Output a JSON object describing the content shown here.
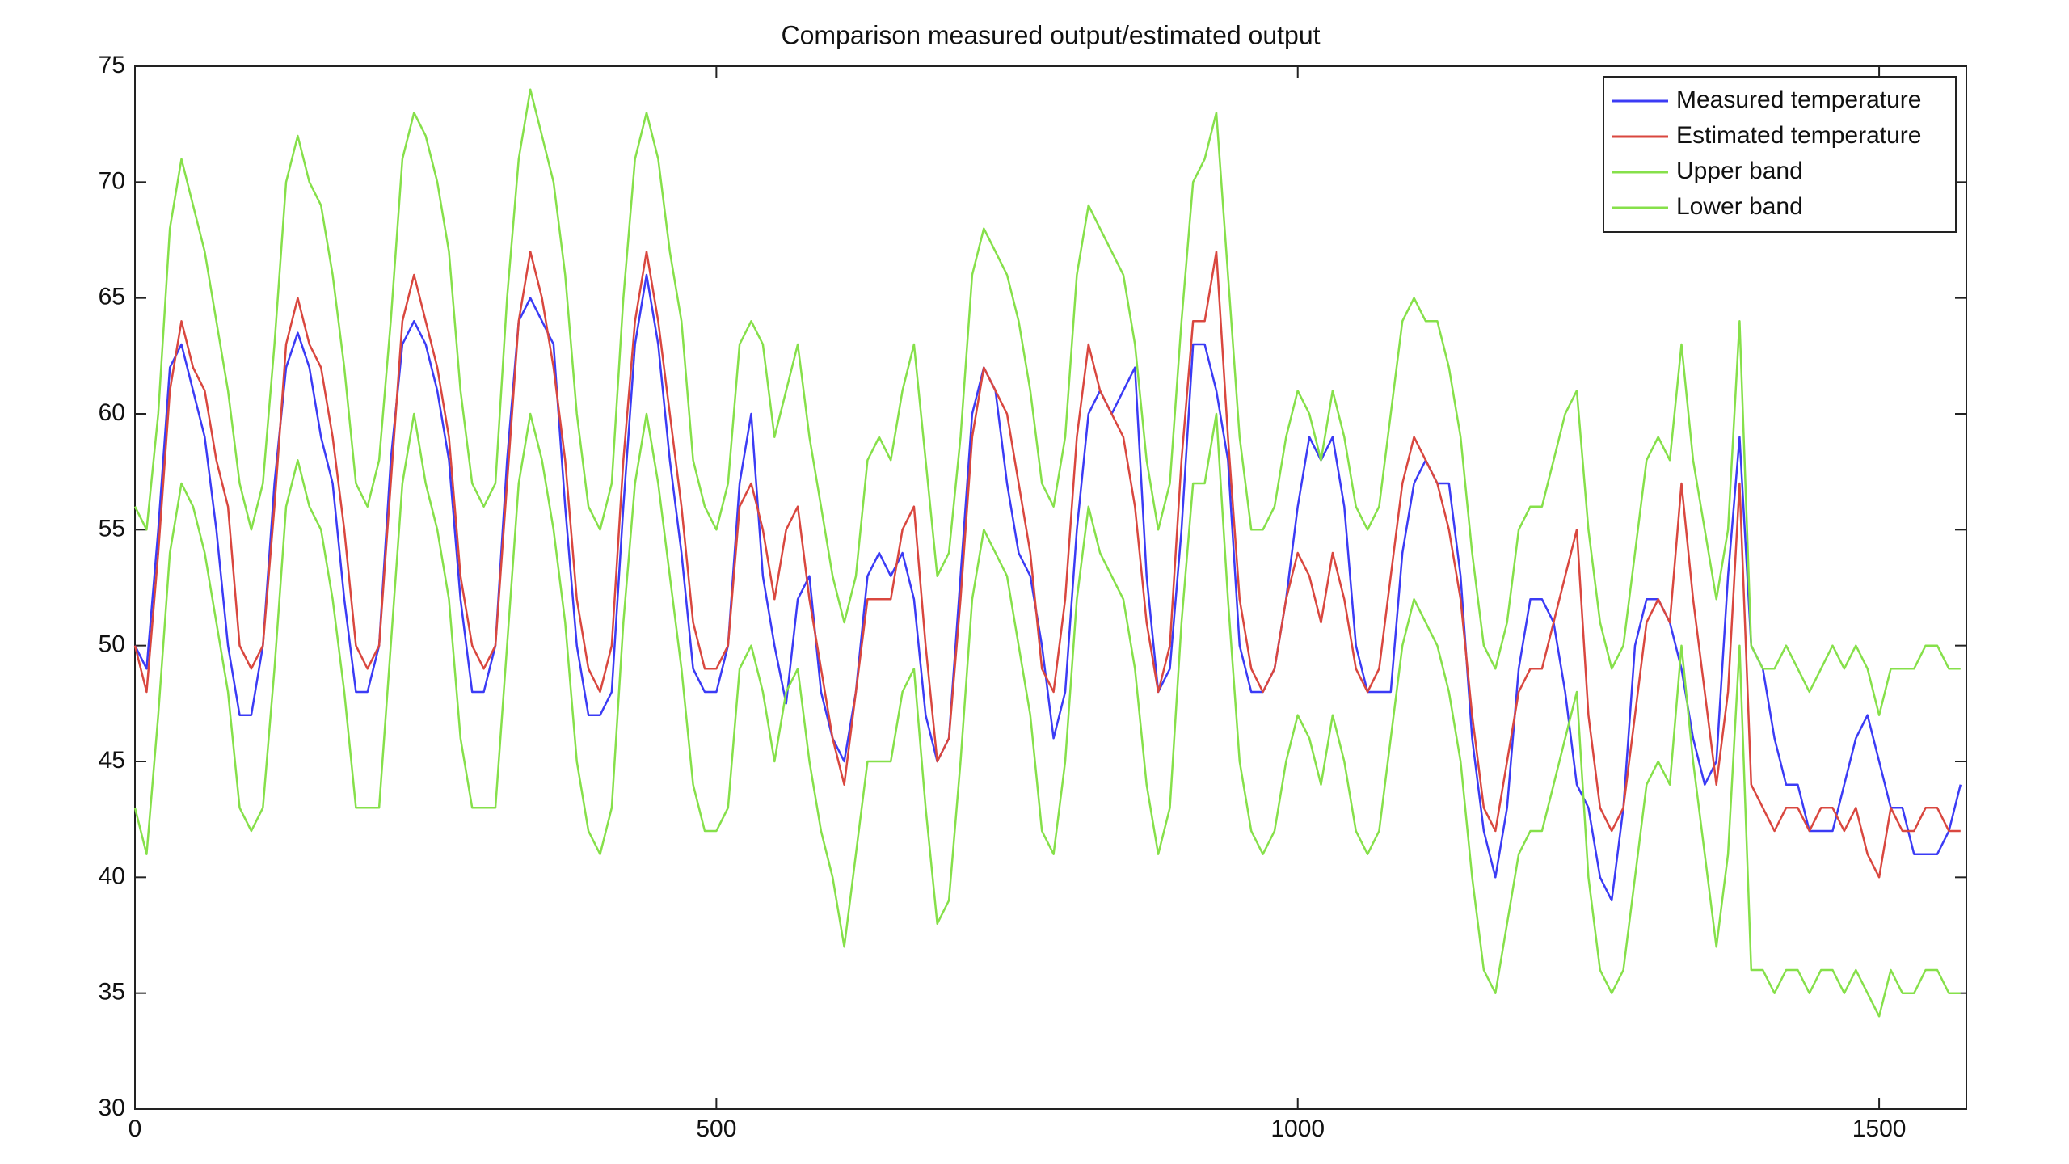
{
  "chart_data": {
    "type": "line",
    "title": "Comparison measured output/estimated output",
    "x": [
      0,
      10,
      20,
      30,
      40,
      50,
      60,
      70,
      80,
      90,
      100,
      110,
      120,
      130,
      140,
      150,
      160,
      170,
      180,
      190,
      200,
      210,
      220,
      230,
      240,
      250,
      260,
      270,
      280,
      290,
      300,
      310,
      320,
      330,
      340,
      350,
      360,
      370,
      380,
      390,
      400,
      410,
      420,
      430,
      440,
      450,
      460,
      470,
      480,
      490,
      500,
      510,
      520,
      530,
      540,
      550,
      560,
      570,
      580,
      590,
      600,
      610,
      620,
      630,
      640,
      650,
      660,
      670,
      680,
      690,
      700,
      710,
      720,
      730,
      740,
      750,
      760,
      770,
      780,
      790,
      800,
      810,
      820,
      830,
      840,
      850,
      860,
      870,
      880,
      890,
      900,
      910,
      920,
      930,
      940,
      950,
      960,
      970,
      980,
      990,
      1000,
      1010,
      1020,
      1030,
      1040,
      1050,
      1060,
      1070,
      1080,
      1090,
      1100,
      1110,
      1120,
      1130,
      1140,
      1150,
      1160,
      1170,
      1180,
      1190,
      1200,
      1210,
      1220,
      1230,
      1240,
      1250,
      1260,
      1270,
      1280,
      1290,
      1300,
      1310,
      1320,
      1330,
      1340,
      1350,
      1360,
      1370,
      1380,
      1390,
      1400,
      1410,
      1420,
      1430,
      1440,
      1450,
      1460,
      1470,
      1480,
      1490,
      1500,
      1510,
      1520,
      1530,
      1540,
      1550,
      1560,
      1570
    ],
    "series": [
      {
        "name": "Measured temperature",
        "color": "#3b3bf5",
        "values": [
          50,
          49,
          55,
          62,
          63,
          61,
          59,
          55,
          50,
          47,
          47,
          50,
          57,
          62,
          63.5,
          62,
          59,
          57,
          52,
          48,
          48,
          50,
          58,
          63,
          64,
          63,
          61,
          58,
          52,
          48,
          48,
          50,
          58,
          64,
          65,
          64,
          63,
          56,
          50,
          47,
          47,
          48,
          56,
          63,
          66,
          63,
          58,
          54,
          49,
          48,
          48,
          50,
          57,
          60,
          53,
          50,
          47.5,
          52,
          53,
          48,
          46,
          45,
          48,
          53,
          54,
          53,
          54,
          52,
          47,
          45,
          46,
          53,
          60,
          62,
          61,
          57,
          54,
          53,
          50,
          46,
          48,
          55,
          60,
          61,
          60,
          61,
          62,
          53,
          48,
          49,
          55,
          63,
          63,
          61,
          58,
          50,
          48,
          48,
          49,
          52,
          56,
          59,
          58,
          59,
          56,
          50,
          48,
          48,
          48,
          54,
          57,
          58,
          57,
          57,
          53,
          46,
          42,
          40,
          43,
          49,
          52,
          52,
          51,
          48,
          44,
          43,
          40,
          39,
          43,
          50,
          52,
          52,
          51,
          49,
          46,
          44,
          45,
          53,
          59,
          50,
          49,
          46,
          44,
          44,
          42,
          42,
          42,
          44,
          46,
          47,
          45,
          43,
          43,
          41,
          41,
          41,
          42,
          44
        ]
      },
      {
        "name": "Estimated temperature",
        "color": "#d9473f",
        "values": [
          50,
          48,
          54,
          61,
          64,
          62,
          61,
          58,
          56,
          50,
          49,
          50,
          56,
          63,
          65,
          63,
          62,
          59,
          55,
          50,
          49,
          50,
          57,
          64,
          66,
          64,
          62,
          59,
          53,
          50,
          49,
          50,
          57,
          64,
          67,
          65,
          62,
          58,
          52,
          49,
          48,
          50,
          58,
          64,
          67,
          64,
          60,
          56,
          51,
          49,
          49,
          50,
          56,
          57,
          55,
          52,
          55,
          56,
          52,
          49,
          46,
          44,
          48,
          52,
          52,
          52,
          55,
          56,
          50,
          45,
          46,
          52,
          59,
          62,
          61,
          60,
          57,
          54,
          49,
          48,
          52,
          59,
          63,
          61,
          60,
          59,
          56,
          51,
          48,
          50,
          58,
          64,
          64,
          67,
          59,
          52,
          49,
          48,
          49,
          52,
          54,
          53,
          51,
          54,
          52,
          49,
          48,
          49,
          53,
          57,
          59,
          58,
          57,
          55,
          52,
          47,
          43,
          42,
          45,
          48,
          49,
          49,
          51,
          53,
          55,
          47,
          43,
          42,
          43,
          47,
          51,
          52,
          51,
          57,
          52,
          48,
          44,
          48,
          57,
          44,
          43,
          42,
          43,
          43,
          42,
          43,
          43,
          42,
          43,
          41,
          40,
          43,
          42,
          42,
          43,
          43,
          42,
          42
        ]
      },
      {
        "name": "Upper band",
        "color": "#86e04a",
        "values": [
          56,
          55,
          60,
          68,
          71,
          69,
          67,
          64,
          61,
          57,
          55,
          57,
          63,
          70,
          72,
          70,
          69,
          66,
          62,
          57,
          56,
          58,
          64,
          71,
          73,
          72,
          70,
          67,
          61,
          57,
          56,
          57,
          65,
          71,
          74,
          72,
          70,
          66,
          60,
          56,
          55,
          57,
          65,
          71,
          73,
          71,
          67,
          64,
          58,
          56,
          55,
          57,
          63,
          64,
          63,
          59,
          61,
          63,
          59,
          56,
          53,
          51,
          53,
          58,
          59,
          58,
          61,
          63,
          58,
          53,
          54,
          59,
          66,
          68,
          67,
          66,
          64,
          61,
          57,
          56,
          59,
          66,
          69,
          68,
          67,
          66,
          63,
          58,
          55,
          57,
          64,
          70,
          71,
          73,
          66,
          59,
          55,
          55,
          56,
          59,
          61,
          60,
          58,
          61,
          59,
          56,
          55,
          56,
          60,
          64,
          65,
          64,
          64,
          62,
          59,
          54,
          50,
          49,
          51,
          55,
          56,
          56,
          58,
          60,
          61,
          55,
          51,
          49,
          50,
          54,
          58,
          59,
          58,
          63,
          58,
          55,
          52,
          55,
          64,
          50,
          49,
          49,
          50,
          49,
          48,
          49,
          50,
          49,
          50,
          49,
          47,
          49,
          49,
          49,
          50,
          50,
          49,
          49
        ]
      },
      {
        "name": "Lower band",
        "color": "#86e04a",
        "values": [
          43,
          41,
          47,
          54,
          57,
          56,
          54,
          51,
          48,
          43,
          42,
          43,
          49,
          56,
          58,
          56,
          55,
          52,
          48,
          43,
          43,
          43,
          50,
          57,
          60,
          57,
          55,
          52,
          46,
          43,
          43,
          43,
          50,
          57,
          60,
          58,
          55,
          51,
          45,
          42,
          41,
          43,
          51,
          57,
          60,
          57,
          53,
          49,
          44,
          42,
          42,
          43,
          49,
          50,
          48,
          45,
          48,
          49,
          45,
          42,
          40,
          37,
          41,
          45,
          45,
          45,
          48,
          49,
          43,
          38,
          39,
          45,
          52,
          55,
          54,
          53,
          50,
          47,
          42,
          41,
          45,
          52,
          56,
          54,
          53,
          52,
          49,
          44,
          41,
          43,
          51,
          57,
          57,
          60,
          52,
          45,
          42,
          41,
          42,
          45,
          47,
          46,
          44,
          47,
          45,
          42,
          41,
          42,
          46,
          50,
          52,
          51,
          50,
          48,
          45,
          40,
          36,
          35,
          38,
          41,
          42,
          42,
          44,
          46,
          48,
          40,
          36,
          35,
          36,
          40,
          44,
          45,
          44,
          50,
          45,
          41,
          37,
          41,
          50,
          36,
          36,
          35,
          36,
          36,
          35,
          36,
          36,
          35,
          36,
          35,
          34,
          36,
          35,
          35,
          36,
          36,
          35,
          35
        ]
      }
    ],
    "xlim": [
      0,
      1575
    ],
    "ylim": [
      30,
      75
    ],
    "xticks": [
      0,
      500,
      1000,
      1500
    ],
    "yticks": [
      30,
      35,
      40,
      45,
      50,
      55,
      60,
      65,
      70,
      75
    ],
    "grid": false,
    "legend": "upper right"
  }
}
